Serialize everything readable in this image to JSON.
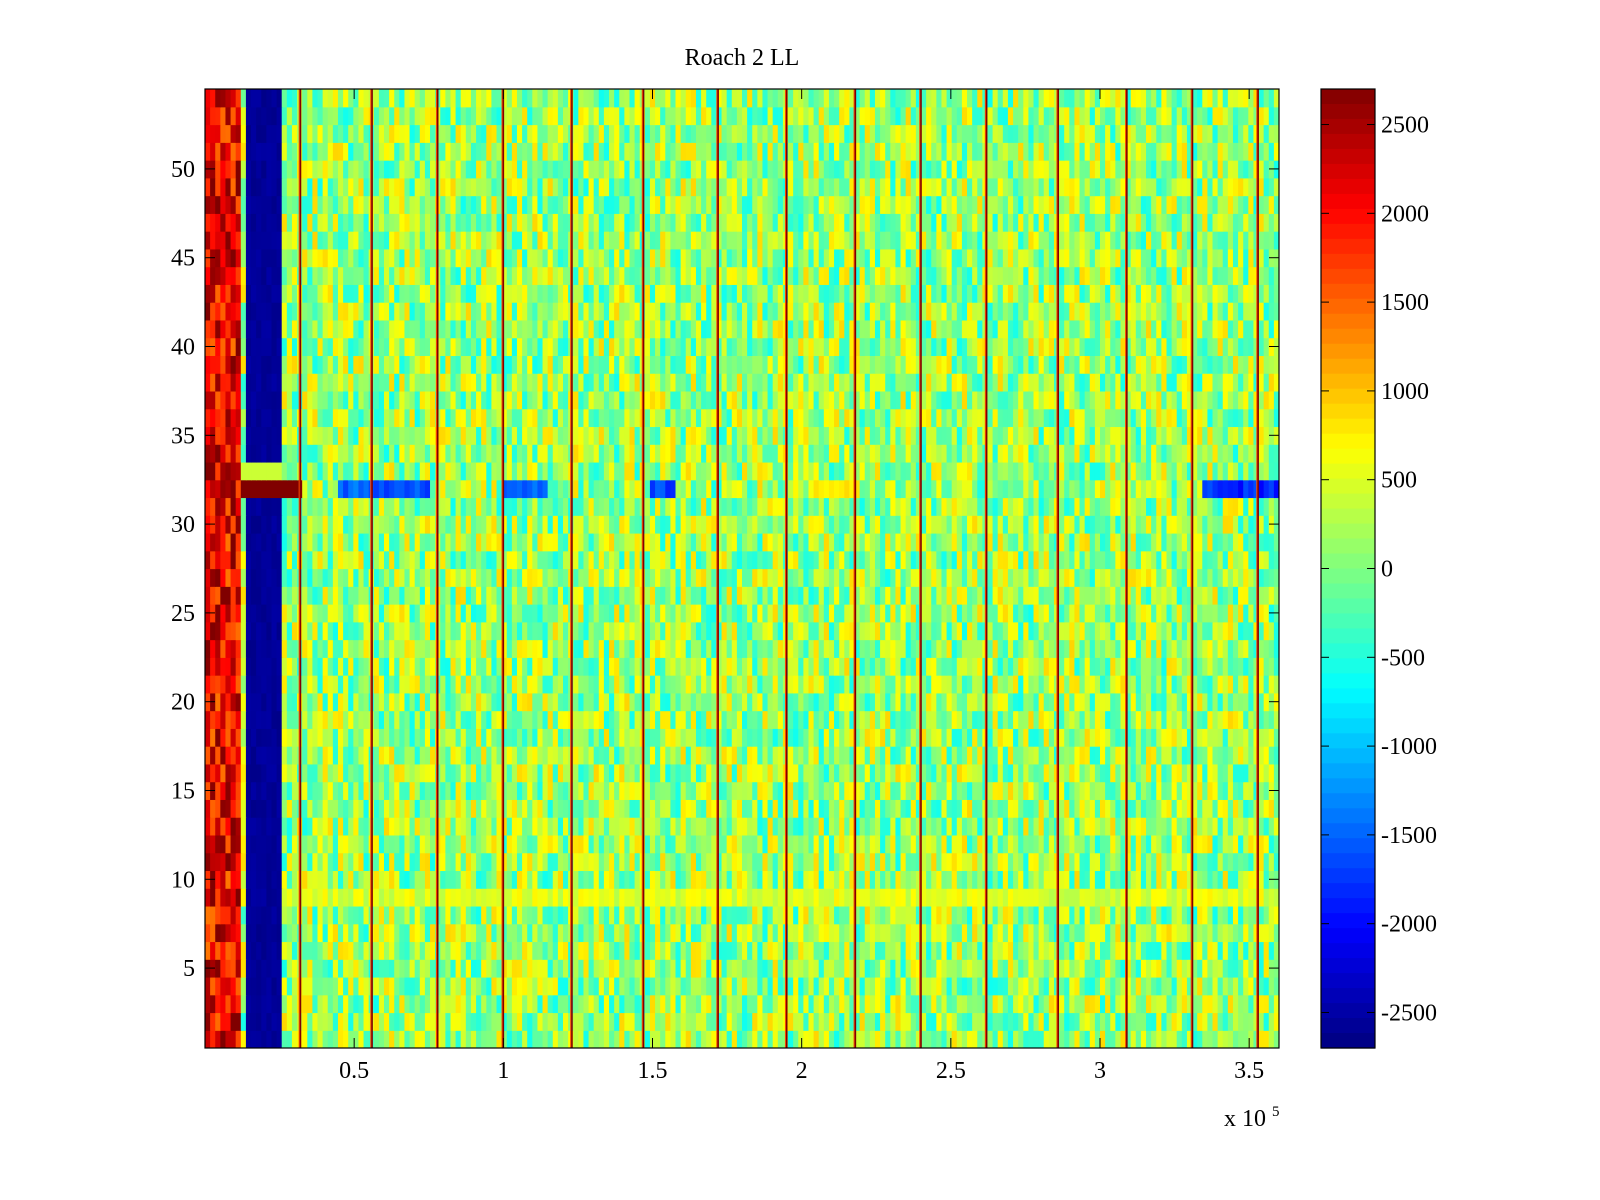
{
  "chart_data": {
    "type": "heatmap",
    "title": "Roach 2 LL",
    "xlabel": "",
    "ylabel": "",
    "x_multiplier_label": "x 10",
    "x_multiplier_exponent": "5",
    "xlim": [
      0,
      3.6
    ],
    "ylim": [
      0.5,
      54.5
    ],
    "x_ticks": [
      {
        "value": 0.5,
        "label": "0.5"
      },
      {
        "value": 1,
        "label": "1"
      },
      {
        "value": 1.5,
        "label": "1.5"
      },
      {
        "value": 2,
        "label": "2"
      },
      {
        "value": 2.5,
        "label": "2.5"
      },
      {
        "value": 3,
        "label": "3"
      },
      {
        "value": 3.5,
        "label": "3.5"
      }
    ],
    "y_ticks": [
      {
        "value": 5,
        "label": "5"
      },
      {
        "value": 10,
        "label": "10"
      },
      {
        "value": 15,
        "label": "15"
      },
      {
        "value": 20,
        "label": "20"
      },
      {
        "value": 25,
        "label": "25"
      },
      {
        "value": 30,
        "label": "30"
      },
      {
        "value": 35,
        "label": "35"
      },
      {
        "value": 40,
        "label": "40"
      },
      {
        "value": 45,
        "label": "45"
      },
      {
        "value": 50,
        "label": "50"
      }
    ],
    "color_range": [
      -2700,
      2700
    ],
    "colorbar_ticks": [
      {
        "value": 2500,
        "label": "2500"
      },
      {
        "value": 2000,
        "label": "2000"
      },
      {
        "value": 1500,
        "label": "1500"
      },
      {
        "value": 1000,
        "label": "1000"
      },
      {
        "value": 500,
        "label": "500"
      },
      {
        "value": 0,
        "label": "0"
      },
      {
        "value": -500,
        "label": "-500"
      },
      {
        "value": -1000,
        "label": "-1000"
      },
      {
        "value": -1500,
        "label": "-1500"
      },
      {
        "value": -2000,
        "label": "-2000"
      },
      {
        "value": -2500,
        "label": "-2500"
      }
    ],
    "colormap": "jet",
    "rows": 54,
    "background_mean": 150,
    "bands": [
      {
        "x_start": 0,
        "x_end": 0.12,
        "value": 2100,
        "note": "high band"
      },
      {
        "x_start": 0.14,
        "x_end": 0.25,
        "value": -2650,
        "note": "low band"
      }
    ],
    "spike_lines_x": [
      0.32,
      0.56,
      0.78,
      1.0,
      1.23,
      1.47,
      1.72,
      1.95,
      2.18,
      2.4,
      2.62,
      2.86,
      3.09,
      3.31,
      3.53
    ],
    "spike_value": 2700,
    "special_row": {
      "y": 32,
      "x_start": 0.12,
      "x_end": 0.33,
      "value": 2700
    },
    "low_segments_row_32": [
      {
        "x_start": 0.45,
        "x_end": 0.75,
        "value": -1800
      },
      {
        "x_start": 1.0,
        "x_end": 1.15,
        "value": -1700
      },
      {
        "x_start": 1.5,
        "x_end": 1.58,
        "value": -1900
      },
      {
        "x_start": 3.35,
        "x_end": 3.6,
        "value": -2100
      }
    ],
    "high_segment_row_32": {
      "x_start": 2.05,
      "x_end": 2.2,
      "value": 700
    },
    "elevated_row": {
      "y": 9,
      "value": 500
    }
  }
}
